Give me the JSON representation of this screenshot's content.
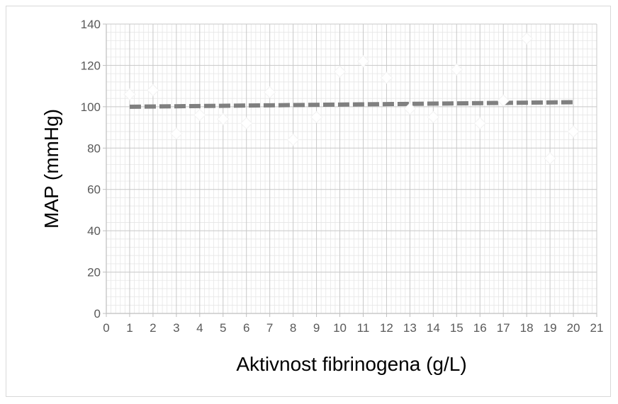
{
  "chart_data": {
    "type": "scatter",
    "title": "",
    "xlabel": "Aktivnost fibrinogena (g/L)",
    "ylabel": "MAP  (mmHg)",
    "xlim": [
      0,
      21
    ],
    "ylim": [
      0,
      140
    ],
    "x_ticks": [
      "0",
      "1",
      "2",
      "3",
      "4",
      "5",
      "6",
      "7",
      "8",
      "9",
      "10",
      "11",
      "12",
      "13",
      "14",
      "15",
      "16",
      "17",
      "18",
      "19",
      "20",
      "21"
    ],
    "y_ticks": [
      "0",
      "20",
      "40",
      "60",
      "80",
      "100",
      "120",
      "140"
    ],
    "grid": true,
    "minor_grid": true,
    "legend": "none",
    "series": [
      {
        "marker": "diamond",
        "color": "#ffffff",
        "x": [
          1,
          2,
          3,
          4,
          5,
          6,
          7,
          8,
          9,
          10,
          11,
          12,
          13,
          14,
          15,
          16,
          17,
          18,
          19,
          20
        ],
        "y": [
          106,
          108,
          87,
          96,
          94,
          92,
          107,
          84,
          95,
          117,
          122,
          114,
          99,
          95,
          118,
          92,
          103,
          133,
          75,
          88
        ]
      }
    ],
    "trendline": {
      "type": "linear",
      "style": "dashed",
      "color": "#808080",
      "x": [
        1,
        20
      ],
      "y": [
        100.0,
        102.2
      ]
    }
  }
}
